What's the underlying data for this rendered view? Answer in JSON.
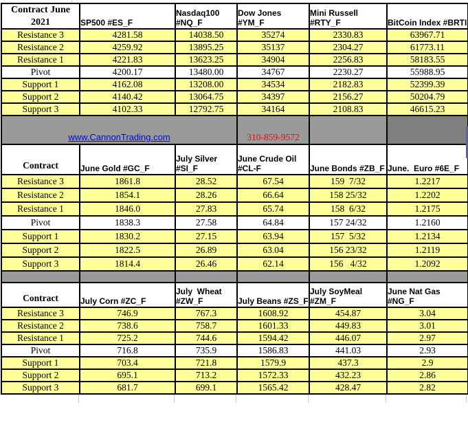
{
  "banner": {
    "link_text": "www.CannonTrading.com",
    "phone": "310-859-9572"
  },
  "colors": {
    "cell_yellow": "#FFFF99",
    "band_gray": "#9A9A9A",
    "band_gray_dark": "#7F7F7F",
    "border_black": "#000000",
    "link_blue": "#0000FF",
    "phone_red": "#FF0000"
  },
  "sections": [
    {
      "corner": "Contract June 2021",
      "headers": [
        "SP500 #ES_F",
        "Nasdaq100 #NQ_F",
        "Dow Jones #YM_F",
        "Mini Russell #RTY_F",
        "BitCoin Index #BRTI"
      ],
      "rows": [
        {
          "label": "Resistance 3",
          "values": [
            "4281.58",
            "14038.50",
            "35274",
            "2330.83",
            "63967.71"
          ]
        },
        {
          "label": "Resistance 2",
          "values": [
            "4259.92",
            "13895.25",
            "35137",
            "2304.27",
            "61773.11"
          ]
        },
        {
          "label": "Resistance 1",
          "values": [
            "4221.83",
            "13623.25",
            "34904",
            "2256.83",
            "58183.55"
          ]
        },
        {
          "label": "Pivot",
          "values": [
            "4200.17",
            "13480.00",
            "34767",
            "2230.27",
            "55988.95"
          ]
        },
        {
          "label": "Support 1",
          "values": [
            "4162.08",
            "13208.00",
            "34534",
            "2182.83",
            "52399.39"
          ]
        },
        {
          "label": "Support 2",
          "values": [
            "4140.42",
            "13064.75",
            "34397",
            "2156.27",
            "50204.79"
          ]
        },
        {
          "label": "Support 3",
          "values": [
            "4102.33",
            "12792.75",
            "34164",
            "2108.83",
            "46615.23"
          ]
        }
      ]
    },
    {
      "corner": "Contract",
      "headers": [
        "June Gold #GC_F",
        "July Silver #SI_F",
        "June Crude Oil #CL-F",
        "June Bonds #ZB_F",
        "June.  Euro #6E_F"
      ],
      "rows": [
        {
          "label": "Resistance 3",
          "values": [
            "1861.8",
            "28.52",
            "67.54",
            "159  7/32",
            "1.2217"
          ]
        },
        {
          "label": "Resistance 2",
          "values": [
            "1854.1",
            "28.26",
            "66.64",
            "158 25/32",
            "1.2202"
          ]
        },
        {
          "label": "Resistance 1",
          "values": [
            "1846.0",
            "27.83",
            "65.74",
            "158  6/32",
            "1.2175"
          ]
        },
        {
          "label": "Pivot",
          "values": [
            "1838.3",
            "27.58",
            "64.84",
            "157 24/32",
            "1.2160"
          ]
        },
        {
          "label": "Support 1",
          "values": [
            "1830.2",
            "27.15",
            "63.94",
            "157  5/32",
            "1.2134"
          ]
        },
        {
          "label": "Support 2",
          "values": [
            "1822.5",
            "26.89",
            "63.04",
            "156 23/32",
            "1.2119"
          ]
        },
        {
          "label": "Support 3",
          "values": [
            "1814.4",
            "26.46",
            "62.14",
            "156   4/32",
            "1.2092"
          ]
        }
      ]
    },
    {
      "corner": "Contract",
      "headers": [
        "July Corn #ZC_F",
        "July  Wheat #ZW_F",
        "July Beans #ZS_F",
        "July SoyMeal #ZM_F",
        "June Nat Gas #NG_F"
      ],
      "rows": [
        {
          "label": "Resistance 3",
          "values": [
            "746.9",
            "767.3",
            "1608.92",
            "454.87",
            "3.04"
          ]
        },
        {
          "label": "Resistance 2",
          "values": [
            "738.6",
            "758.7",
            "1601.33",
            "449.83",
            "3.01"
          ]
        },
        {
          "label": "Resistance 1",
          "values": [
            "725.2",
            "744.6",
            "1594.42",
            "446.07",
            "2.97"
          ]
        },
        {
          "label": "Pivot",
          "values": [
            "716.8",
            "735.9",
            "1586.83",
            "441.03",
            "2.93"
          ]
        },
        {
          "label": "Support 1",
          "values": [
            "703.4",
            "721.8",
            "1579.9",
            "437.3",
            "2.9"
          ]
        },
        {
          "label": "Support 2",
          "values": [
            "695.1",
            "713.2",
            "1572.33",
            "432.23",
            "2.86"
          ]
        },
        {
          "label": "Support 3",
          "values": [
            "681.7",
            "699.1",
            "1565.42",
            "428.47",
            "2.82"
          ]
        }
      ]
    }
  ]
}
